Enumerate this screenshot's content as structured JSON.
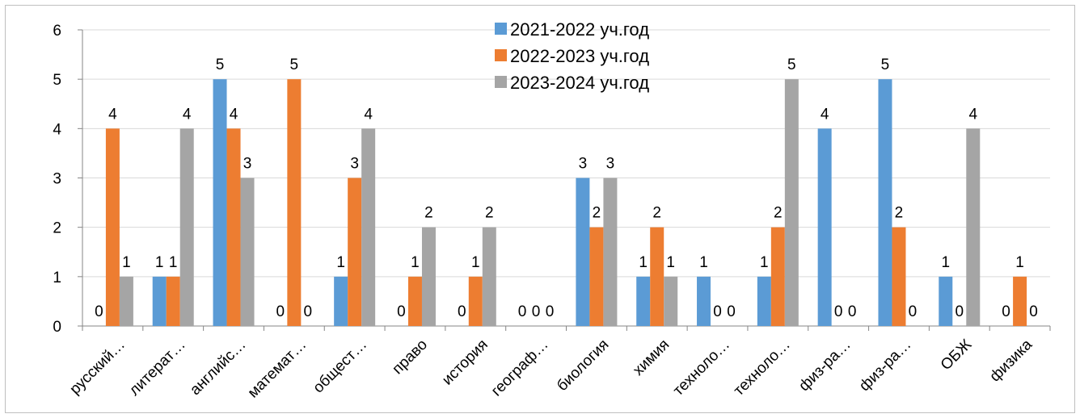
{
  "chart_data": {
    "type": "bar",
    "title": "",
    "xlabel": "",
    "ylabel": "",
    "ylim": [
      0,
      6
    ],
    "yticks": [
      0,
      1,
      2,
      3,
      4,
      5,
      6
    ],
    "grid": true,
    "legend_position": "top-right",
    "categories": [
      "русский…",
      "литерат…",
      "английс…",
      "математ…",
      "общест…",
      "право",
      "история",
      "географ…",
      "биология",
      "химия",
      "техноло…",
      "техноло…",
      "физ-ра…",
      "физ-ра…",
      "ОБЖ",
      "физика"
    ],
    "series": [
      {
        "name": "2021-2022 уч.год",
        "color": "#5b9bd5",
        "values": [
          0,
          1,
          5,
          0,
          1,
          0,
          0,
          0,
          3,
          1,
          1,
          1,
          4,
          5,
          1,
          0
        ]
      },
      {
        "name": "2022-2023 уч.год",
        "color": "#ed7d31",
        "values": [
          4,
          1,
          4,
          5,
          3,
          1,
          1,
          0,
          2,
          2,
          0,
          2,
          0,
          2,
          0,
          1
        ]
      },
      {
        "name": "2023-2024 уч.год",
        "color": "#a5a5a5",
        "values": [
          1,
          4,
          3,
          0,
          4,
          2,
          2,
          0,
          3,
          1,
          0,
          5,
          0,
          0,
          4,
          0
        ]
      }
    ]
  }
}
